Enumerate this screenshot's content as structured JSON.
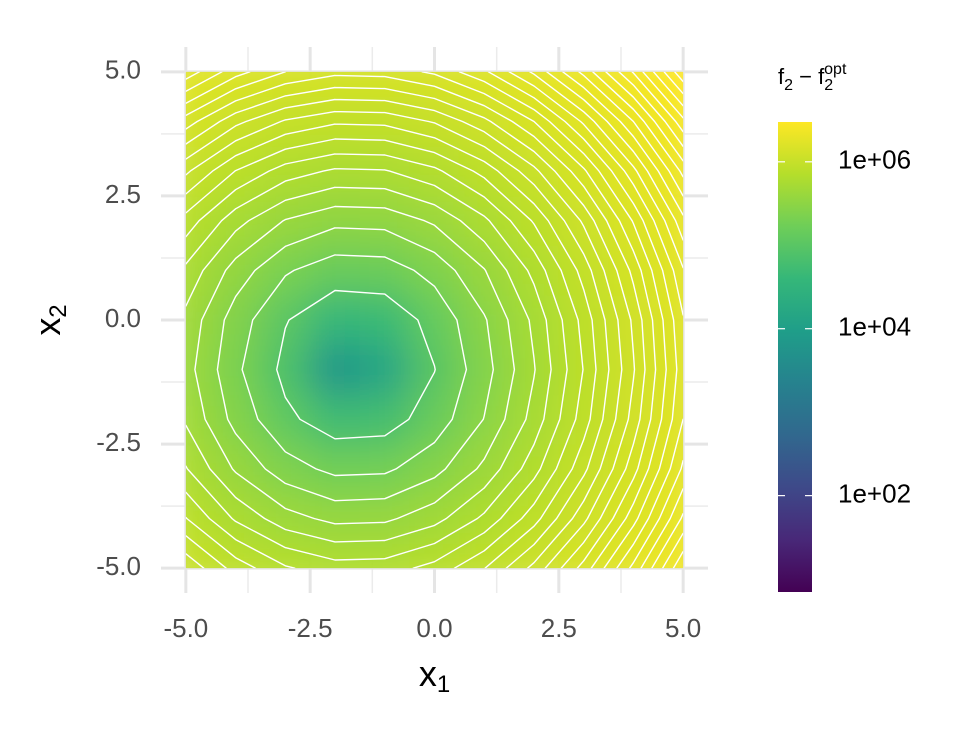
{
  "chart_data": {
    "type": "contour",
    "xlabel": {
      "base": "x",
      "sub": "1"
    },
    "ylabel": {
      "base": "x",
      "sub": "2"
    },
    "legend_title": [
      {
        "text": "f"
      },
      {
        "text": "2",
        "shift": "sub"
      },
      {
        "text": " − "
      },
      {
        "text": "f"
      },
      {
        "text": "2",
        "shift": "sub"
      },
      {
        "text": "opt",
        "shift": "super"
      }
    ],
    "x": [
      -5,
      -4,
      -3,
      -2,
      -1,
      0,
      1,
      2,
      3,
      4,
      5
    ],
    "y": [
      -5,
      -4,
      -3,
      -2,
      -1,
      0,
      1,
      2,
      3,
      4,
      5
    ],
    "z": [
      [
        1080000,
        858000,
        713000,
        645000,
        652000,
        736000,
        896000,
        1130000,
        1440000,
        1830000,
        2290000
      ],
      [
        804000,
        584000,
        440000,
        371000,
        379000,
        462000,
        622000,
        858000,
        1170000,
        1560000,
        2020000
      ],
      [
        607000,
        386000,
        242000,
        174000,
        181000,
        265000,
        424000,
        660000,
        972000,
        1360000,
        1820000
      ],
      [
        485000,
        265000,
        120000,
        52100,
        59700,
        143000,
        303000,
        538000,
        850000,
        1240000,
        1700000
      ],
      [
        440000,
        219000,
        74900,
        6460,
        14100,
        97700,
        257000,
        493000,
        804000,
        1190000,
        1660000
      ],
      [
        470000,
        250000,
        105000,
        36900,
        44500,
        128000,
        288000,
        523000,
        835000,
        1220000,
        1690000
      ],
      [
        576000,
        356000,
        212000,
        143000,
        151000,
        234000,
        394000,
        630000,
        941000,
        1330000,
        1790000
      ],
      [
        759000,
        538000,
        394000,
        326000,
        333000,
        417000,
        576000,
        812000,
        1120000,
        1510000,
        1970000
      ],
      [
        1020000,
        797000,
        652000,
        584000,
        592000,
        675000,
        835000,
        1070000,
        1380000,
        1770000,
        2230000
      ],
      [
        1350000,
        1130000,
        987000,
        918000,
        926000,
        1010000,
        1170000,
        1400000,
        1720000,
        2100000,
        2570000
      ],
      [
        1760000,
        1540000,
        1400000,
        1330000,
        1340000,
        1420000,
        1580000,
        1820000,
        2130000,
        2510000,
        2980000
      ]
    ],
    "contour_levels": [
      100000,
      200000,
      300000,
      400000,
      500000,
      600000,
      700000,
      800000,
      900000,
      1000000,
      1100000,
      1200000,
      1300000,
      1400000,
      1500000,
      1600000,
      1700000,
      1800000,
      1900000,
      2000000,
      2100000,
      2200000,
      2300000,
      2400000,
      2500000,
      2600000,
      2700000,
      2800000,
      2900000
    ],
    "contour_color": "#ffffff",
    "xlim": [
      -5.5,
      5.5
    ],
    "ylim": [
      -5.5,
      5.5
    ],
    "xticks": [
      {
        "value": -5,
        "label": "-5.0"
      },
      {
        "value": -2.5,
        "label": "-2.5"
      },
      {
        "value": 0,
        "label": "0.0"
      },
      {
        "value": 2.5,
        "label": "2.5"
      },
      {
        "value": 5,
        "label": "5.0"
      }
    ],
    "yticks": [
      {
        "value": -5,
        "label": "-5.0"
      },
      {
        "value": -2.5,
        "label": "-2.5"
      },
      {
        "value": 0,
        "label": "0.0"
      },
      {
        "value": 2.5,
        "label": "2.5"
      },
      {
        "value": 5,
        "label": "5.0"
      }
    ],
    "x_minor_ticks": [
      -3.75,
      -1.25,
      1.25,
      3.75
    ],
    "y_minor_ticks": [
      -3.75,
      -1.25,
      1.25,
      3.75
    ],
    "grid": true,
    "color_scale": "log",
    "colorlim": [
      7,
      3000000
    ],
    "colorticks": [
      {
        "value": 100,
        "label": "1e+02"
      },
      {
        "value": 10000,
        "label": "1e+04"
      },
      {
        "value": 1000000,
        "label": "1e+06"
      }
    ],
    "colormap": [
      "#440154",
      "#482878",
      "#3e4989",
      "#31688e",
      "#26828e",
      "#1f9e89",
      "#35b779",
      "#6ece58",
      "#b5de2b",
      "#fde725"
    ],
    "legend_position": "right"
  }
}
